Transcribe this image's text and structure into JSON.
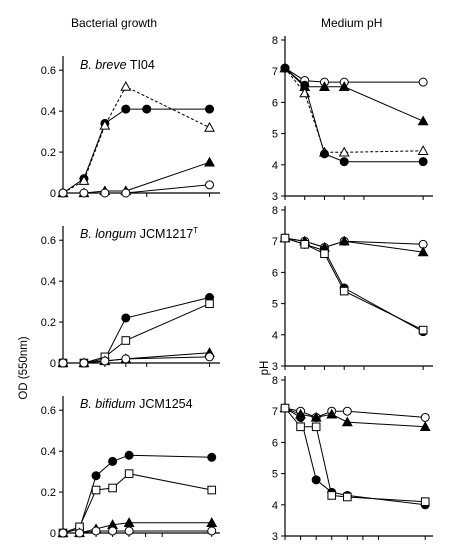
{
  "columns": {
    "left_heading": "Bacterial growth",
    "right_heading": "Medium pH"
  },
  "axis_labels": {
    "od": "OD (550nm)",
    "ph": "pH"
  },
  "panels": [
    {
      "species": "B. breve",
      "strain": "TI04",
      "superscript": ""
    },
    {
      "species": "B. longum",
      "strain": "JCM1217",
      "superscript": "T"
    },
    {
      "species": "B. bifidum",
      "strain": "JCM1254",
      "superscript": ""
    }
  ],
  "chart_data": [
    {
      "type": "line",
      "panel": "B. breve TI04 – growth",
      "ylabel": "OD (550nm)",
      "x": [
        0,
        1,
        2,
        3,
        4,
        7
      ],
      "xlim": [
        0,
        7.5
      ],
      "ylim": [
        0,
        0.65
      ],
      "yticks": [
        0,
        0.2,
        0.4,
        0.6
      ],
      "series": [
        {
          "marker": "filled-circle",
          "values": [
            0,
            0.07,
            0.34,
            0.41,
            0.41,
            0.41
          ]
        },
        {
          "marker": "open-triangle",
          "values": [
            0,
            0.06,
            0.33,
            0.52,
            null,
            0.32
          ]
        },
        {
          "marker": "filled-triangle",
          "values": [
            0,
            0,
            0.01,
            0.01,
            null,
            0.15
          ]
        },
        {
          "marker": "open-circle",
          "values": [
            0,
            0,
            0,
            0,
            null,
            0.04
          ]
        }
      ]
    },
    {
      "type": "line",
      "panel": "B. breve TI04 – pH",
      "ylabel": "pH",
      "x": [
        0,
        1,
        2,
        3,
        4,
        7
      ],
      "xlim": [
        0,
        7.5
      ],
      "ylim": [
        3,
        8
      ],
      "yticks": [
        3,
        4,
        5,
        6,
        7,
        8
      ],
      "series": [
        {
          "marker": "open-circle",
          "values": [
            7.1,
            6.7,
            6.65,
            6.65,
            null,
            6.65
          ]
        },
        {
          "marker": "filled-triangle",
          "values": [
            7.1,
            6.5,
            6.5,
            6.5,
            null,
            5.4
          ]
        },
        {
          "marker": "open-triangle",
          "values": [
            7.1,
            6.3,
            4.4,
            4.4,
            null,
            4.45
          ]
        },
        {
          "marker": "filled-circle",
          "values": [
            7.1,
            6.55,
            4.35,
            4.1,
            null,
            4.1
          ]
        }
      ]
    },
    {
      "type": "line",
      "panel": "B. longum JCM1217T – growth",
      "ylabel": "OD (550nm)",
      "x": [
        0,
        1,
        2,
        3,
        4,
        7
      ],
      "xlim": [
        0,
        7.5
      ],
      "ylim": [
        0,
        0.65
      ],
      "yticks": [
        0,
        0.2,
        0.4,
        0.6
      ],
      "series": [
        {
          "marker": "filled-circle",
          "values": [
            0,
            0,
            0.02,
            0.22,
            null,
            0.32
          ]
        },
        {
          "marker": "open-square",
          "values": [
            0,
            0,
            0.03,
            0.11,
            null,
            0.29
          ]
        },
        {
          "marker": "filled-triangle",
          "values": [
            0,
            0,
            0.01,
            0.02,
            null,
            0.05
          ]
        },
        {
          "marker": "open-circle",
          "values": [
            0,
            0,
            0.01,
            0.02,
            null,
            0.03
          ]
        }
      ]
    },
    {
      "type": "line",
      "panel": "B. longum JCM1217T – pH",
      "ylabel": "pH",
      "x": [
        0,
        1,
        2,
        3,
        4,
        7
      ],
      "xlim": [
        0,
        7.5
      ],
      "ylim": [
        3,
        8
      ],
      "yticks": [
        3,
        4,
        5,
        6,
        7,
        8
      ],
      "series": [
        {
          "marker": "open-circle",
          "values": [
            7.1,
            7.0,
            6.8,
            7.0,
            null,
            6.9
          ]
        },
        {
          "marker": "filled-triangle",
          "values": [
            7.1,
            7.0,
            6.8,
            7.0,
            null,
            6.65
          ]
        },
        {
          "marker": "filled-circle",
          "values": [
            7.1,
            6.9,
            6.7,
            5.5,
            null,
            4.1
          ]
        },
        {
          "marker": "open-square",
          "values": [
            7.1,
            6.9,
            6.6,
            5.4,
            null,
            4.15
          ]
        }
      ]
    },
    {
      "type": "line",
      "panel": "B. bifidum JCM1254 – growth",
      "ylabel": "OD (550nm)",
      "x": [
        0,
        1,
        2,
        3,
        4,
        5,
        6,
        9
      ],
      "xlim": [
        0,
        9.5
      ],
      "ylim": [
        0,
        0.65
      ],
      "yticks": [
        0,
        0.2,
        0.4,
        0.6
      ],
      "series": [
        {
          "marker": "filled-circle",
          "values": [
            0,
            0.02,
            0.28,
            0.35,
            0.38,
            null,
            null,
            0.37
          ]
        },
        {
          "marker": "open-square",
          "values": [
            0,
            0.03,
            0.21,
            0.22,
            0.29,
            null,
            null,
            0.21
          ]
        },
        {
          "marker": "filled-triangle",
          "values": [
            0,
            0,
            0.02,
            0.04,
            0.05,
            null,
            null,
            0.05
          ]
        },
        {
          "marker": "open-circle",
          "values": [
            0,
            0,
            0.01,
            0.01,
            0.01,
            null,
            null,
            0.01
          ]
        }
      ]
    },
    {
      "type": "line",
      "panel": "B. bifidum JCM1254 – pH",
      "ylabel": "pH",
      "x": [
        0,
        1,
        2,
        3,
        4,
        5,
        6,
        9
      ],
      "xlim": [
        0,
        9.5
      ],
      "ylim": [
        3,
        8
      ],
      "yticks": [
        3,
        4,
        5,
        6,
        7,
        8
      ],
      "series": [
        {
          "marker": "open-circle",
          "values": [
            7.1,
            7.0,
            6.8,
            7.0,
            7.0,
            null,
            null,
            6.8
          ]
        },
        {
          "marker": "filled-triangle",
          "values": [
            7.1,
            6.9,
            6.8,
            6.9,
            6.65,
            null,
            null,
            6.5
          ]
        },
        {
          "marker": "filled-circle",
          "values": [
            7.1,
            6.8,
            4.8,
            4.4,
            4.3,
            null,
            null,
            4.0
          ]
        },
        {
          "marker": "open-square",
          "values": [
            7.1,
            6.5,
            6.5,
            4.3,
            4.25,
            null,
            null,
            4.1
          ]
        }
      ]
    }
  ]
}
